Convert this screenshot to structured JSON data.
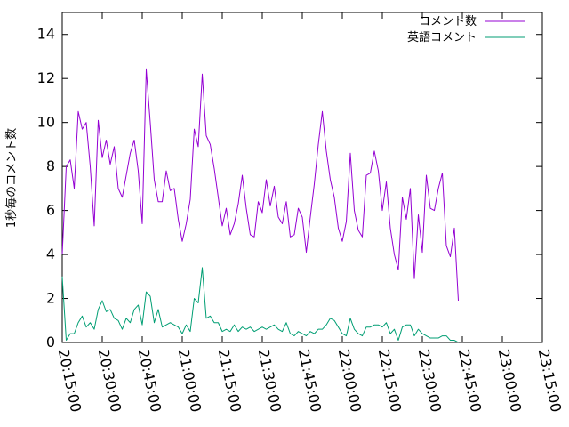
{
  "chart_data": {
    "type": "line",
    "title": "",
    "xlabel": "",
    "ylabel": "1秒毎のコメント数",
    "x_tick_labels": [
      "20:15:00",
      "20:30:00",
      "20:45:00",
      "21:00:00",
      "21:15:00",
      "21:30:00",
      "21:45:00",
      "22:00:00",
      "22:15:00",
      "22:30:00",
      "22:45:00",
      "23:00:00",
      "23:15:00"
    ],
    "y_tick_labels": [
      "0",
      "2",
      "4",
      "6",
      "8",
      "10",
      "12",
      "14"
    ],
    "xlim": [
      "20:15:00",
      "23:15:00"
    ],
    "ylim": [
      0,
      15
    ],
    "x_unit": "minutes",
    "x_start": "20:15:00",
    "grid": false,
    "legend_position": "top-right",
    "series": [
      {
        "name": "コメント数",
        "color": "#9400d3",
        "points": [
          [
            0,
            4.0
          ],
          [
            1.5,
            8.0
          ],
          [
            3,
            8.3
          ],
          [
            4.5,
            7.0
          ],
          [
            6,
            10.5
          ],
          [
            7.5,
            9.7
          ],
          [
            9,
            10.0
          ],
          [
            10.5,
            8.0
          ],
          [
            12,
            5.3
          ],
          [
            13.5,
            10.1
          ],
          [
            15,
            8.4
          ],
          [
            16.5,
            9.2
          ],
          [
            18,
            8.1
          ],
          [
            19.5,
            8.9
          ],
          [
            21,
            7.0
          ],
          [
            22.5,
            6.6
          ],
          [
            24,
            7.6
          ],
          [
            25.5,
            8.6
          ],
          [
            27,
            9.2
          ],
          [
            28.5,
            7.8
          ],
          [
            30,
            5.4
          ],
          [
            31.5,
            12.4
          ],
          [
            33,
            10.0
          ],
          [
            34.5,
            7.4
          ],
          [
            36,
            6.4
          ],
          [
            37.5,
            6.4
          ],
          [
            39,
            7.8
          ],
          [
            40.5,
            6.9
          ],
          [
            42,
            7.0
          ],
          [
            43.5,
            5.6
          ],
          [
            45,
            4.6
          ],
          [
            46.5,
            5.4
          ],
          [
            48,
            6.5
          ],
          [
            49.5,
            9.7
          ],
          [
            51,
            8.9
          ],
          [
            52.5,
            12.2
          ],
          [
            54,
            9.4
          ],
          [
            55.5,
            9.0
          ],
          [
            57,
            7.9
          ],
          [
            58.5,
            6.6
          ],
          [
            60,
            5.3
          ],
          [
            61.5,
            6.1
          ],
          [
            63,
            4.9
          ],
          [
            64.5,
            5.4
          ],
          [
            66,
            6.3
          ],
          [
            67.5,
            7.6
          ],
          [
            69,
            6.1
          ],
          [
            70.5,
            4.9
          ],
          [
            72,
            4.8
          ],
          [
            73.5,
            6.4
          ],
          [
            75,
            5.9
          ],
          [
            76.5,
            7.4
          ],
          [
            78,
            6.2
          ],
          [
            79.5,
            7.1
          ],
          [
            81,
            5.7
          ],
          [
            82.5,
            5.4
          ],
          [
            84,
            6.4
          ],
          [
            85.5,
            4.8
          ],
          [
            87,
            4.9
          ],
          [
            88.5,
            6.1
          ],
          [
            90,
            5.7
          ],
          [
            91.5,
            4.1
          ],
          [
            93,
            5.7
          ],
          [
            94.5,
            7.2
          ],
          [
            96,
            9.0
          ],
          [
            97.5,
            10.5
          ],
          [
            99,
            8.7
          ],
          [
            100.5,
            7.4
          ],
          [
            102,
            6.6
          ],
          [
            103.5,
            5.2
          ],
          [
            105,
            4.6
          ],
          [
            106.5,
            5.5
          ],
          [
            108,
            8.6
          ],
          [
            109.5,
            6.0
          ],
          [
            111,
            5.1
          ],
          [
            112.5,
            4.8
          ],
          [
            114,
            7.6
          ],
          [
            115.5,
            7.7
          ],
          [
            117,
            8.7
          ],
          [
            118.5,
            7.8
          ],
          [
            120,
            6.0
          ],
          [
            121.5,
            7.3
          ],
          [
            123,
            5.2
          ],
          [
            124.5,
            4.0
          ],
          [
            126,
            3.3
          ],
          [
            127.5,
            6.6
          ],
          [
            129,
            5.6
          ],
          [
            130.5,
            7.0
          ],
          [
            132,
            2.9
          ],
          [
            133.5,
            5.8
          ],
          [
            135,
            4.1
          ],
          [
            136.5,
            7.6
          ],
          [
            138,
            6.1
          ],
          [
            139.5,
            6.0
          ],
          [
            141,
            7.0
          ],
          [
            142.5,
            7.7
          ],
          [
            144,
            4.4
          ],
          [
            145.5,
            3.9
          ],
          [
            147,
            5.2
          ],
          [
            148.5,
            1.9
          ]
        ]
      },
      {
        "name": "英語コメント",
        "color": "#009e73",
        "points": [
          [
            0,
            3.0
          ],
          [
            1.5,
            0.1
          ],
          [
            3,
            0.4
          ],
          [
            4.5,
            0.4
          ],
          [
            6,
            0.9
          ],
          [
            7.5,
            1.2
          ],
          [
            9,
            0.7
          ],
          [
            10.5,
            0.9
          ],
          [
            12,
            0.6
          ],
          [
            13.5,
            1.5
          ],
          [
            15,
            1.9
          ],
          [
            16.5,
            1.4
          ],
          [
            18,
            1.5
          ],
          [
            19.5,
            1.1
          ],
          [
            21,
            1.0
          ],
          [
            22.5,
            0.6
          ],
          [
            24,
            1.1
          ],
          [
            25.5,
            0.9
          ],
          [
            27,
            1.5
          ],
          [
            28.5,
            1.7
          ],
          [
            30,
            0.8
          ],
          [
            31.5,
            2.3
          ],
          [
            33,
            2.1
          ],
          [
            34.5,
            0.9
          ],
          [
            36,
            1.5
          ],
          [
            37.5,
            0.7
          ],
          [
            39,
            0.8
          ],
          [
            40.5,
            0.9
          ],
          [
            42,
            0.8
          ],
          [
            43.5,
            0.7
          ],
          [
            45,
            0.4
          ],
          [
            46.5,
            0.8
          ],
          [
            48,
            0.5
          ],
          [
            49.5,
            2.0
          ],
          [
            51,
            1.8
          ],
          [
            52.5,
            3.4
          ],
          [
            54,
            1.1
          ],
          [
            55.5,
            1.2
          ],
          [
            57,
            0.9
          ],
          [
            58.5,
            0.9
          ],
          [
            60,
            0.5
          ],
          [
            61.5,
            0.6
          ],
          [
            63,
            0.5
          ],
          [
            64.5,
            0.8
          ],
          [
            66,
            0.5
          ],
          [
            67.5,
            0.7
          ],
          [
            69,
            0.6
          ],
          [
            70.5,
            0.7
          ],
          [
            72,
            0.5
          ],
          [
            73.5,
            0.6
          ],
          [
            75,
            0.7
          ],
          [
            76.5,
            0.6
          ],
          [
            78,
            0.7
          ],
          [
            79.5,
            0.8
          ],
          [
            81,
            0.6
          ],
          [
            82.5,
            0.5
          ],
          [
            84,
            0.9
          ],
          [
            85.5,
            0.4
          ],
          [
            87,
            0.3
          ],
          [
            88.5,
            0.5
          ],
          [
            90,
            0.4
          ],
          [
            91.5,
            0.3
          ],
          [
            93,
            0.5
          ],
          [
            94.5,
            0.4
          ],
          [
            96,
            0.6
          ],
          [
            97.5,
            0.6
          ],
          [
            99,
            0.8
          ],
          [
            100.5,
            1.1
          ],
          [
            102,
            1.0
          ],
          [
            103.5,
            0.7
          ],
          [
            105,
            0.4
          ],
          [
            106.5,
            0.3
          ],
          [
            108,
            1.1
          ],
          [
            109.5,
            0.6
          ],
          [
            111,
            0.4
          ],
          [
            112.5,
            0.3
          ],
          [
            114,
            0.7
          ],
          [
            115.5,
            0.7
          ],
          [
            117,
            0.8
          ],
          [
            118.5,
            0.8
          ],
          [
            120,
            0.7
          ],
          [
            121.5,
            0.9
          ],
          [
            123,
            0.4
          ],
          [
            124.5,
            0.6
          ],
          [
            126,
            0.1
          ],
          [
            127.5,
            0.7
          ],
          [
            129,
            0.8
          ],
          [
            130.5,
            0.8
          ],
          [
            132,
            0.3
          ],
          [
            133.5,
            0.6
          ],
          [
            135,
            0.4
          ],
          [
            136.5,
            0.3
          ],
          [
            138,
            0.2
          ],
          [
            139.5,
            0.2
          ],
          [
            141,
            0.2
          ],
          [
            142.5,
            0.3
          ],
          [
            144,
            0.3
          ],
          [
            145.5,
            0.1
          ],
          [
            147,
            0.1
          ],
          [
            148.5,
            0.0
          ]
        ]
      }
    ]
  }
}
